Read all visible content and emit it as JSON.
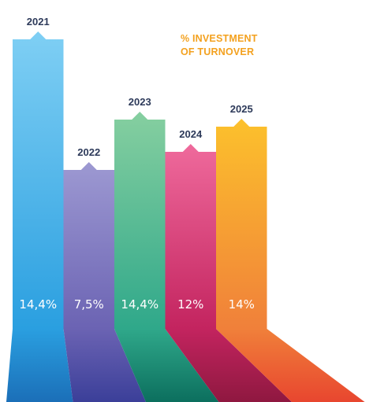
{
  "chart_data": {
    "type": "bar",
    "title_lines": [
      "% INVESTMENT",
      "OF TURNOVER"
    ],
    "categories": [
      "2021",
      "2022",
      "2023",
      "2024",
      "2025"
    ],
    "values": [
      14.4,
      7.5,
      14.4,
      12,
      14
    ],
    "value_labels": [
      "14,4%",
      "7,5%",
      "14,4%",
      "12%",
      "14%"
    ],
    "unit": "%",
    "xlabel": "",
    "ylabel": "",
    "grid": false,
    "legend_placement": "top-right",
    "colors": [
      {
        "top": "#7fcff4",
        "bottom": "#2a9fe0",
        "base": "#1b6fb8"
      },
      {
        "top": "#9d99d2",
        "bottom": "#6b63b3",
        "base": "#3b3f99"
      },
      {
        "top": "#86cfa0",
        "bottom": "#2fa88a",
        "base": "#0c6f5e"
      },
      {
        "top": "#ef6a9c",
        "bottom": "#c3245f",
        "base": "#8f1840"
      },
      {
        "top": "#fcc12c",
        "bottom": "#f0803a",
        "base": "#e8462f"
      }
    ],
    "label_color": "#2d3a5a",
    "legend_color": "#f3a11f"
  }
}
